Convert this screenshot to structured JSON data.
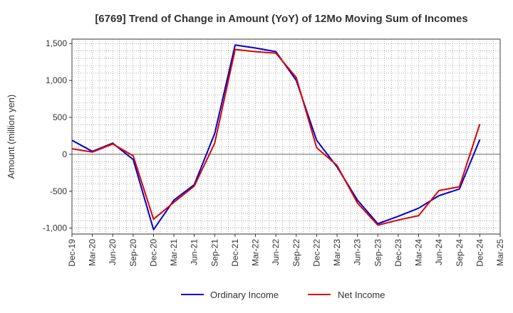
{
  "chart_data": {
    "type": "line",
    "title": "[6769]  Trend of Change in Amount (YoY) of 12Mo Moving Sum of Incomes",
    "ylabel": "Amount (million yen)",
    "xlabel": "",
    "ylim": [
      -1080,
      1560
    ],
    "yticks": [
      -1000,
      -500,
      0,
      500,
      1000,
      1500
    ],
    "ytick_labels": [
      "-1,000",
      "-500",
      "0",
      "500",
      "1,000",
      "1,500"
    ],
    "x": [
      "Dec-19",
      "Mar-20",
      "Jun-20",
      "Sep-20",
      "Dec-20",
      "Mar-21",
      "Jun-21",
      "Sep-21",
      "Dec-21",
      "Mar-22",
      "Jun-22",
      "Sep-22",
      "Dec-22",
      "Mar-23",
      "Jun-23",
      "Sep-23",
      "Dec-23",
      "Mar-24",
      "Jun-24",
      "Sep-24",
      "Dec-24",
      "Mar-25"
    ],
    "grid": true,
    "legend_position": "bottom",
    "series": [
      {
        "name": "Ordinary Income",
        "color": "#0000cc",
        "values": [
          190,
          40,
          150,
          -70,
          -1020,
          -620,
          -410,
          280,
          1480,
          1440,
          1390,
          1000,
          190,
          -170,
          -620,
          -940,
          -840,
          -730,
          -560,
          -470,
          200,
          null
        ]
      },
      {
        "name": "Net Income",
        "color": "#dd0000",
        "values": [
          75,
          30,
          140,
          -20,
          -880,
          -650,
          -430,
          150,
          1420,
          1390,
          1370,
          1040,
          90,
          -150,
          -660,
          -960,
          -890,
          -830,
          -490,
          -440,
          410,
          null
        ]
      }
    ]
  }
}
